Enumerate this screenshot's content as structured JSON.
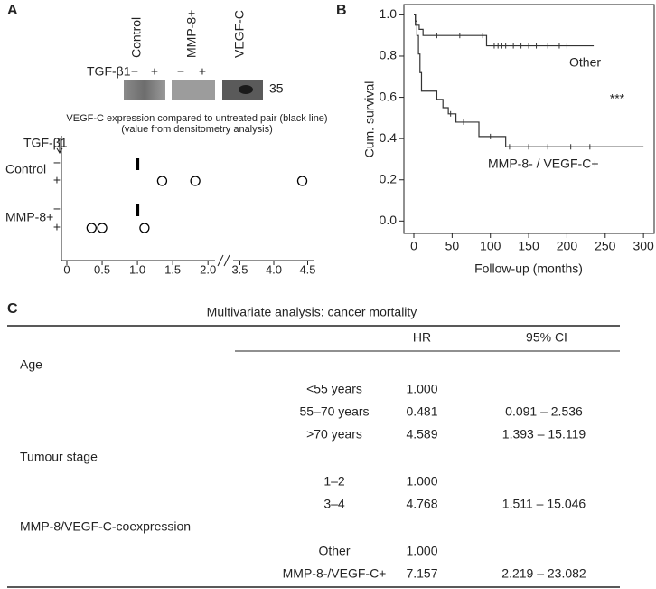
{
  "panels": [
    "A",
    "B",
    "C"
  ],
  "blot": {
    "treatment_label": "TGF-β1",
    "lanes": [
      "Control",
      "MMP-8+",
      "VEGF-C"
    ],
    "treatments": [
      "−",
      "+"
    ],
    "size_label": "35"
  },
  "chart_data": [
    {
      "type": "dot",
      "title": "VEGF-C expression compared to untreated pair (black line)",
      "subtitle": "(value from densitometry analysis)",
      "row_label": "TGF-β1",
      "treatments": [
        "−",
        "+"
      ],
      "reference": 1,
      "series": [
        {
          "name": "Control",
          "color": "#000000",
          "values": [
            1.35,
            1.82,
            4.42
          ]
        },
        {
          "name": "MMP-8+",
          "color": "#000000",
          "values": [
            0.35,
            0.5,
            1.1
          ]
        }
      ],
      "xlim": [
        0,
        4.6
      ],
      "xbreak": [
        2.1,
        3.4
      ],
      "xticks": [
        0,
        0.5,
        {
          "value": 1,
          "label": "1.0"
        },
        1.5,
        {
          "value": 2,
          "label": "2.0"
        },
        3.5,
        {
          "value": 4,
          "label": "4.0"
        },
        4.5
      ]
    },
    {
      "type": "step",
      "xlabel": "Follow-up (months)",
      "ylabel": "Cum. survival",
      "annotation": "***",
      "xlim": [
        -13,
        314
      ],
      "ylim": [
        -0.06,
        1.05
      ],
      "xticks": [
        0,
        50,
        100,
        150,
        200,
        250,
        300
      ],
      "yticks": [
        {
          "value": 0,
          "label": "0.0"
        },
        0.2,
        0.4,
        0.6,
        0.8,
        {
          "value": 1,
          "label": "1.0"
        }
      ],
      "series": [
        {
          "name": "Other",
          "color": "#333333",
          "x": [
            0,
            2,
            2,
            4,
            4,
            7,
            7,
            12,
            12,
            95,
            95,
            235
          ],
          "values": [
            1,
            1,
            0.97,
            0.97,
            0.95,
            0.95,
            0.93,
            0.93,
            0.9,
            0.9,
            0.85,
            0.85
          ],
          "censored": {
            "x": [
              30,
              60,
              90,
              105,
              110,
              115,
              120,
              130,
              140,
              150,
              160,
              175,
              190,
              200
            ],
            "values": [
              0.9,
              0.9,
              0.9,
              0.85,
              0.85,
              0.85,
              0.85,
              0.85,
              0.85,
              0.85,
              0.85,
              0.85,
              0.85,
              0.85
            ]
          }
        },
        {
          "name": "MMP-8- / VEGF-C+",
          "color": "#333333",
          "x": [
            0,
            2,
            2,
            4,
            4,
            6,
            6,
            8,
            8,
            10,
            10,
            30,
            30,
            38,
            38,
            45,
            45,
            55,
            55,
            85,
            85,
            120,
            120,
            300
          ],
          "values": [
            1,
            1,
            0.95,
            0.95,
            0.9,
            0.9,
            0.81,
            0.81,
            0.72,
            0.72,
            0.63,
            0.63,
            0.59,
            0.59,
            0.55,
            0.55,
            0.52,
            0.52,
            0.48,
            0.48,
            0.41,
            0.41,
            0.36,
            0.36
          ],
          "censored": {
            "x": [
              48,
              65,
              100,
              125,
              150,
              175,
              205,
              230
            ],
            "values": [
              0.52,
              0.48,
              0.41,
              0.36,
              0.36,
              0.36,
              0.36,
              0.36
            ]
          }
        }
      ]
    }
  ],
  "table": {
    "title": "Multivariate analysis: cancer mortality",
    "columns": [
      "HR",
      "95% CI"
    ],
    "sections": [
      {
        "name": "Age",
        "rows": [
          {
            "label": "<55 years",
            "hr": "1.000"
          },
          {
            "label": "55–70 years",
            "hr": "0.481",
            "ci": "0.091 – 2.536"
          },
          {
            "label": ">70 years",
            "hr": "4.589",
            "ci": "1.393 – 15.119"
          }
        ]
      },
      {
        "name": "Tumour stage",
        "rows": [
          {
            "label": "1–2",
            "hr": "1.000"
          },
          {
            "label": "3–4",
            "hr": "4.768",
            "ci": "1.511 – 15.046"
          }
        ]
      },
      {
        "name": "MMP-8/VEGF-C-coexpression",
        "rows": [
          {
            "label": "Other",
            "hr": "1.000"
          },
          {
            "label": "MMP-8-/VEGF-C+",
            "hr": "7.157",
            "ci": "2.219 – 23.082"
          }
        ]
      }
    ]
  }
}
